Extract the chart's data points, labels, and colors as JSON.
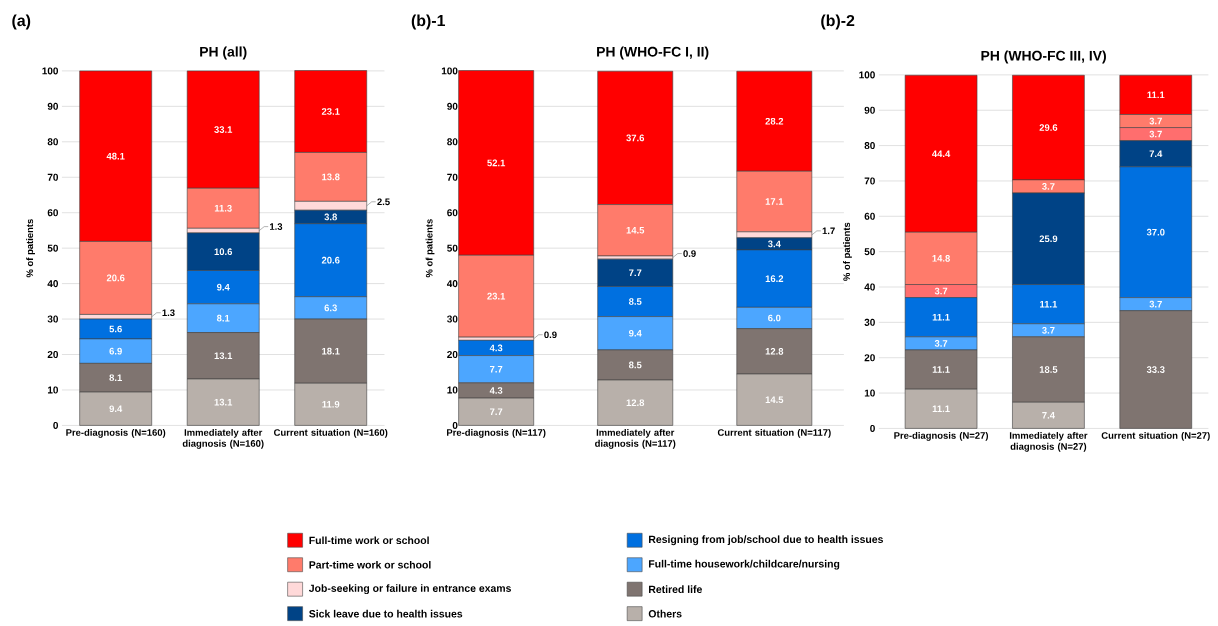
{
  "chart_data": [
    {
      "type": "bar",
      "stacked": true,
      "title": "PH (all)",
      "ylabel": "% of patients",
      "annotations": [
        "(a)"
      ],
      "categories": [
        "Pre-diagnosis (N=160)",
        "Immediately after diagnosis (N=160)",
        "Current situation (N=160)"
      ],
      "ylim": [
        0,
        100
      ],
      "yticks": [
        0,
        10,
        20,
        30,
        40,
        50,
        60,
        70,
        80,
        90,
        100
      ],
      "grid": "y",
      "legend": "bottom",
      "series": [
        {
          "name": "Others",
          "color": "#b8b0aa",
          "values": [
            9.4,
            13.1,
            11.9
          ],
          "value_labels": [
            "9.4",
            "13.1",
            "11.9"
          ]
        },
        {
          "name": "Retired life",
          "color": "#7f7470",
          "values": [
            8.1,
            13.1,
            18.1
          ],
          "value_labels": [
            "8.1",
            "13.1",
            "18.1"
          ]
        },
        {
          "name": "Full-time housework/childcare/nursing",
          "color": "#4ca6ff",
          "values": [
            6.9,
            8.1,
            6.3
          ],
          "value_labels": [
            "6.9",
            "8.1",
            "6.3"
          ]
        },
        {
          "name": "Resigning from job/school due to health issues",
          "color": "#0070e0",
          "values": [
            5.6,
            9.4,
            20.6
          ],
          "value_labels": [
            "5.6",
            "9.4",
            "20.6"
          ]
        },
        {
          "name": "Sick leave due to health issues",
          "color": "#004386",
          "values": [
            0,
            10.6,
            3.8
          ],
          "value_labels": [
            null,
            "10.6",
            "3.8"
          ]
        },
        {
          "name": "Job-seeking or failure in entrance exams",
          "color": "#ffd9d9",
          "values": [
            1.3,
            1.3,
            2.5
          ],
          "value_labels": [
            "1.3",
            "1.3",
            "2.5"
          ]
        },
        {
          "name": "Part-time work or school",
          "color": "#ff7b6b",
          "values": [
            20.6,
            11.3,
            13.8
          ],
          "value_labels": [
            "20.6",
            "11.3",
            "13.8"
          ]
        },
        {
          "name": "Full-time work or school",
          "color": "#ff0000",
          "values": [
            48.1,
            33.1,
            23.1
          ],
          "value_labels": [
            "48.1",
            "33.1",
            "23.1"
          ]
        }
      ]
    },
    {
      "type": "bar",
      "stacked": true,
      "title": "PH (WHO-FC I, II)",
      "ylabel": "% of patients",
      "annotations": [
        "(b)-1"
      ],
      "categories": [
        "Pre-diagnosis (N=117)",
        "Immediately after diagnosis (N=117)",
        "Current situation (N=117)"
      ],
      "ylim": [
        0,
        100
      ],
      "yticks": [
        0,
        10,
        20,
        30,
        40,
        50,
        60,
        70,
        80,
        90,
        100
      ],
      "grid": "y",
      "series": [
        {
          "color": "#b8b0aa",
          "values": [
            7.7,
            12.8,
            14.5
          ],
          "value_labels": [
            "7.7",
            "12.8",
            "14.5"
          ]
        },
        {
          "color": "#7f7470",
          "values": [
            4.3,
            8.5,
            12.8
          ],
          "value_labels": [
            "4.3",
            "8.5",
            "12.8"
          ]
        },
        {
          "color": "#4ca6ff",
          "values": [
            7.7,
            9.4,
            6.0
          ],
          "value_labels": [
            "7.7",
            "9.4",
            "6.0"
          ]
        },
        {
          "color": "#0070e0",
          "values": [
            4.3,
            8.5,
            16.2
          ],
          "value_labels": [
            "4.3",
            "8.5",
            "16.2"
          ]
        },
        {
          "color": "#004386",
          "values": [
            0,
            7.7,
            3.4
          ],
          "value_labels": [
            null,
            "7.7",
            "3.4"
          ]
        },
        {
          "color": "#ffd9d9",
          "values": [
            0.9,
            0.9,
            1.7
          ],
          "value_labels": [
            "0.9",
            "0.9",
            "1.7"
          ]
        },
        {
          "color": "#ff7b6b",
          "values": [
            23.1,
            14.5,
            17.1
          ],
          "value_labels": [
            "23.1",
            "14.5",
            "17.1"
          ]
        },
        {
          "color": "#ff0000",
          "values": [
            52.1,
            37.6,
            28.2
          ],
          "value_labels": [
            "52.1",
            "37.6",
            "28.2"
          ]
        }
      ]
    },
    {
      "type": "bar",
      "stacked": true,
      "title": "PH (WHO-FC III, IV)",
      "ylabel": "% of patients",
      "annotations": [
        "(b)-2"
      ],
      "categories": [
        "Pre-diagnosis (N=27)",
        "Immediately after diagnosis (N=27)",
        "Current situation (N=27)"
      ],
      "ylim": [
        0,
        100
      ],
      "yticks": [
        0,
        10,
        20,
        30,
        40,
        50,
        60,
        70,
        80,
        90,
        100
      ],
      "grid": "y",
      "series": [
        {
          "color": "#b8b0aa",
          "values": [
            11.1,
            7.4,
            0
          ],
          "value_labels": [
            "11.1",
            "7.4",
            null
          ]
        },
        {
          "color": "#7f7470",
          "values": [
            11.1,
            18.5,
            33.3
          ],
          "value_labels": [
            "11.1",
            "18.5",
            "33.3"
          ]
        },
        {
          "color": "#4ca6ff",
          "values": [
            3.7,
            3.7,
            3.7
          ],
          "value_labels": [
            "3.7",
            "3.7",
            "3.7"
          ]
        },
        {
          "color": "#0070e0",
          "values": [
            11.1,
            11.1,
            37.0
          ],
          "value_labels": [
            "11.1",
            "11.1",
            "37.0"
          ]
        },
        {
          "color": "#004386",
          "values": [
            0,
            25.9,
            7.4
          ],
          "value_labels": [
            null,
            "25.9",
            "7.4"
          ]
        },
        {
          "color": "#ff6e6e",
          "values": [
            3.7,
            0,
            3.7
          ],
          "value_labels": [
            "3.7",
            null,
            "3.7"
          ]
        },
        {
          "color": "#ff7b6b",
          "values": [
            14.8,
            3.7,
            3.7
          ],
          "value_labels": [
            "14.8",
            "3.7",
            "3.7"
          ]
        },
        {
          "color": "#ff0000",
          "values": [
            44.4,
            29.6,
            11.1
          ],
          "value_labels": [
            "44.4",
            "29.6",
            "11.1"
          ]
        }
      ]
    }
  ]
}
